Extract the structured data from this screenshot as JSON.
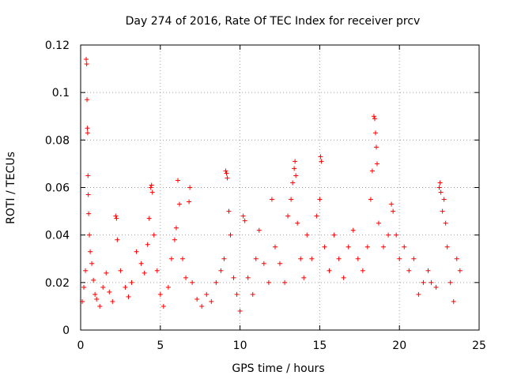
{
  "chart_data": {
    "type": "scatter",
    "title": "Day 274 of 2016, Rate Of TEC Index for receiver prcv",
    "xlabel": "GPS time / hours",
    "ylabel": "ROTI / TECUs",
    "xlim": [
      0,
      25
    ],
    "ylim": [
      0,
      0.12
    ],
    "xticks": [
      "0",
      "5",
      "10",
      "15",
      "20",
      "25"
    ],
    "yticks": [
      "0",
      "0.02",
      "0.04",
      "0.06",
      "0.08",
      "0.1",
      "0.12"
    ],
    "grid": true,
    "marker": "+",
    "color": "#ff0000",
    "series": [
      {
        "name": "ROTI",
        "points": [
          [
            0.1,
            0.012
          ],
          [
            0.2,
            0.018
          ],
          [
            0.3,
            0.025
          ],
          [
            0.35,
            0.114
          ],
          [
            0.38,
            0.112
          ],
          [
            0.4,
            0.097
          ],
          [
            0.42,
            0.085
          ],
          [
            0.44,
            0.083
          ],
          [
            0.46,
            0.065
          ],
          [
            0.48,
            0.057
          ],
          [
            0.5,
            0.049
          ],
          [
            0.55,
            0.04
          ],
          [
            0.6,
            0.033
          ],
          [
            0.7,
            0.028
          ],
          [
            0.8,
            0.021
          ],
          [
            0.9,
            0.015
          ],
          [
            1.0,
            0.013
          ],
          [
            1.2,
            0.01
          ],
          [
            1.4,
            0.018
          ],
          [
            1.6,
            0.024
          ],
          [
            1.8,
            0.016
          ],
          [
            2.0,
            0.012
          ],
          [
            2.2,
            0.048
          ],
          [
            2.25,
            0.047
          ],
          [
            2.3,
            0.038
          ],
          [
            2.5,
            0.025
          ],
          [
            2.8,
            0.018
          ],
          [
            3.0,
            0.014
          ],
          [
            3.2,
            0.02
          ],
          [
            3.5,
            0.033
          ],
          [
            3.8,
            0.028
          ],
          [
            4.0,
            0.024
          ],
          [
            4.2,
            0.036
          ],
          [
            4.3,
            0.047
          ],
          [
            4.4,
            0.06
          ],
          [
            4.45,
            0.061
          ],
          [
            4.5,
            0.058
          ],
          [
            4.6,
            0.04
          ],
          [
            4.8,
            0.025
          ],
          [
            5.0,
            0.015
          ],
          [
            5.2,
            0.01
          ],
          [
            5.5,
            0.018
          ],
          [
            5.7,
            0.03
          ],
          [
            5.9,
            0.038
          ],
          [
            6.0,
            0.043
          ],
          [
            6.1,
            0.063
          ],
          [
            6.2,
            0.053
          ],
          [
            6.4,
            0.03
          ],
          [
            6.6,
            0.022
          ],
          [
            6.8,
            0.054
          ],
          [
            6.85,
            0.06
          ],
          [
            7.0,
            0.02
          ],
          [
            7.3,
            0.013
          ],
          [
            7.6,
            0.01
          ],
          [
            7.9,
            0.015
          ],
          [
            8.2,
            0.012
          ],
          [
            8.5,
            0.02
          ],
          [
            8.8,
            0.025
          ],
          [
            9.0,
            0.03
          ],
          [
            9.1,
            0.067
          ],
          [
            9.15,
            0.066
          ],
          [
            9.2,
            0.064
          ],
          [
            9.3,
            0.05
          ],
          [
            9.4,
            0.04
          ],
          [
            9.6,
            0.022
          ],
          [
            9.8,
            0.015
          ],
          [
            10.0,
            0.008
          ],
          [
            10.2,
            0.048
          ],
          [
            10.3,
            0.046
          ],
          [
            10.5,
            0.022
          ],
          [
            10.8,
            0.015
          ],
          [
            11.0,
            0.03
          ],
          [
            11.2,
            0.042
          ],
          [
            11.5,
            0.028
          ],
          [
            11.8,
            0.02
          ],
          [
            12.0,
            0.055
          ],
          [
            12.2,
            0.035
          ],
          [
            12.5,
            0.028
          ],
          [
            12.8,
            0.02
          ],
          [
            13.0,
            0.048
          ],
          [
            13.2,
            0.055
          ],
          [
            13.3,
            0.062
          ],
          [
            13.4,
            0.068
          ],
          [
            13.45,
            0.071
          ],
          [
            13.5,
            0.065
          ],
          [
            13.6,
            0.045
          ],
          [
            13.8,
            0.03
          ],
          [
            14.0,
            0.022
          ],
          [
            14.2,
            0.04
          ],
          [
            14.5,
            0.03
          ],
          [
            14.8,
            0.048
          ],
          [
            15.0,
            0.055
          ],
          [
            15.05,
            0.073
          ],
          [
            15.1,
            0.071
          ],
          [
            15.3,
            0.035
          ],
          [
            15.6,
            0.025
          ],
          [
            15.9,
            0.04
          ],
          [
            16.2,
            0.03
          ],
          [
            16.5,
            0.022
          ],
          [
            16.8,
            0.035
          ],
          [
            17.1,
            0.042
          ],
          [
            17.4,
            0.03
          ],
          [
            17.7,
            0.025
          ],
          [
            18.0,
            0.035
          ],
          [
            18.2,
            0.055
          ],
          [
            18.3,
            0.067
          ],
          [
            18.4,
            0.09
          ],
          [
            18.45,
            0.089
          ],
          [
            18.5,
            0.083
          ],
          [
            18.55,
            0.077
          ],
          [
            18.6,
            0.07
          ],
          [
            18.7,
            0.045
          ],
          [
            19.0,
            0.035
          ],
          [
            19.3,
            0.04
          ],
          [
            19.5,
            0.053
          ],
          [
            19.6,
            0.05
          ],
          [
            19.8,
            0.04
          ],
          [
            20.0,
            0.03
          ],
          [
            20.3,
            0.035
          ],
          [
            20.6,
            0.025
          ],
          [
            20.9,
            0.03
          ],
          [
            21.2,
            0.015
          ],
          [
            21.5,
            0.02
          ],
          [
            21.8,
            0.025
          ],
          [
            22.0,
            0.02
          ],
          [
            22.3,
            0.018
          ],
          [
            22.5,
            0.06
          ],
          [
            22.55,
            0.062
          ],
          [
            22.6,
            0.058
          ],
          [
            22.7,
            0.05
          ],
          [
            22.8,
            0.055
          ],
          [
            22.9,
            0.045
          ],
          [
            23.0,
            0.035
          ],
          [
            23.2,
            0.02
          ],
          [
            23.4,
            0.012
          ],
          [
            23.6,
            0.03
          ],
          [
            23.8,
            0.025
          ]
        ]
      }
    ]
  }
}
